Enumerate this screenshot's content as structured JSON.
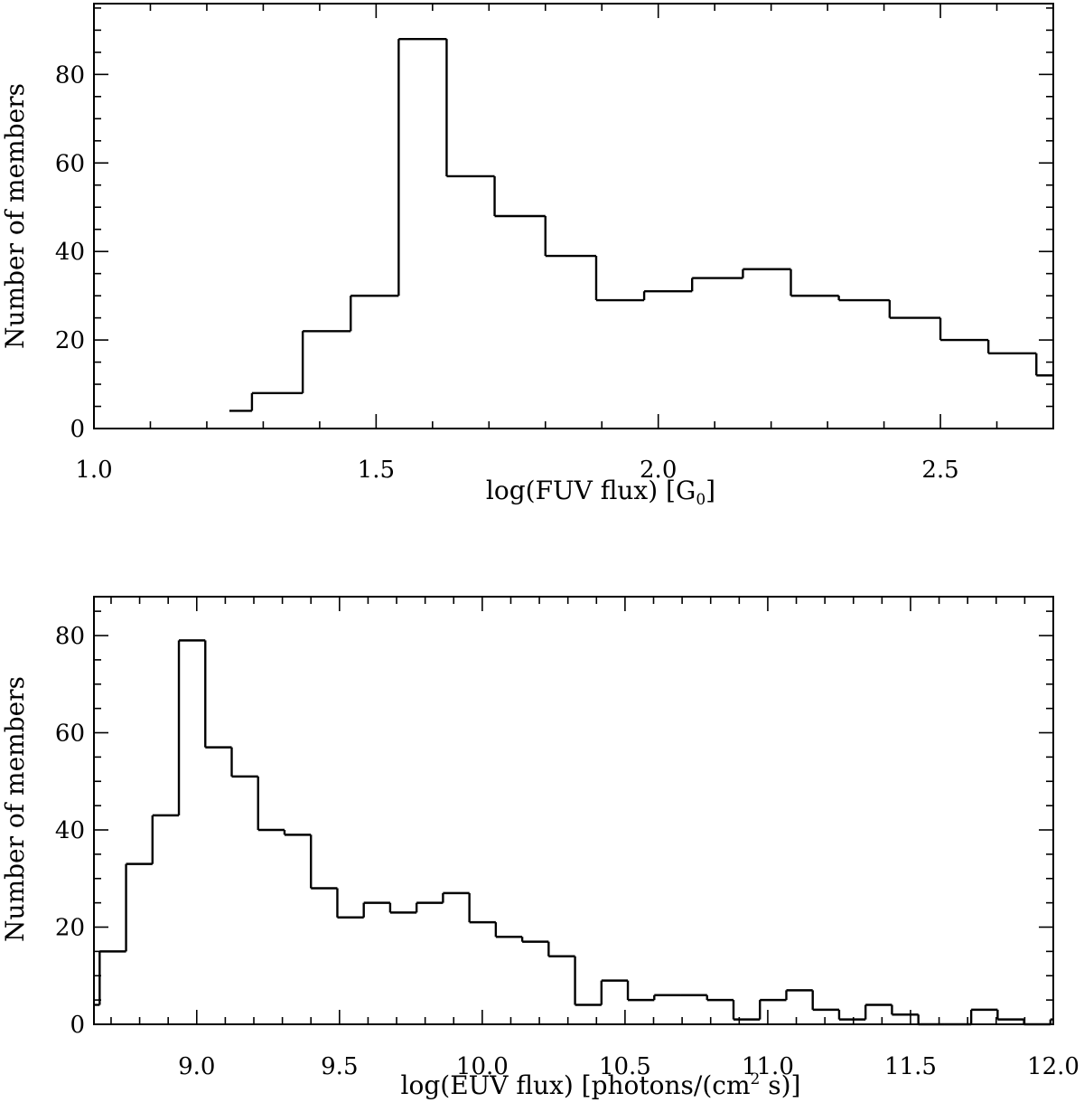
{
  "chart_data": [
    {
      "type": "histogram",
      "xlabel_pre": "log(FUV flux) [G",
      "xlabel_sub": "0",
      "xlabel_post": "]",
      "ylabel": "Number of members",
      "xlim": [
        1.0,
        2.7
      ],
      "ylim": [
        0,
        96
      ],
      "x_ticks": [
        1.0,
        1.5,
        2.0,
        2.5
      ],
      "x_tick_labels": [
        "1.0",
        "1.5",
        "2.0",
        "2.5"
      ],
      "x_minor_step": 0.1,
      "y_ticks": [
        0,
        20,
        40,
        60,
        80
      ],
      "y_tick_labels": [
        "0",
        "20",
        "40",
        "60",
        "80"
      ],
      "y_minor_step": 5,
      "bin_edges": [
        1.24,
        1.28,
        1.37,
        1.455,
        1.54,
        1.625,
        1.71,
        1.8,
        1.89,
        1.975,
        2.06,
        2.15,
        2.235,
        2.32,
        2.41,
        2.5,
        2.585,
        2.67,
        2.7
      ],
      "counts": [
        4,
        8,
        22,
        30,
        88,
        57,
        48,
        39,
        29,
        31,
        34,
        36,
        30,
        29,
        25,
        20,
        17,
        12
      ]
    },
    {
      "type": "histogram",
      "xlabel_pre": "log(EUV flux) [photons/(cm",
      "xlabel_sup": "2",
      "xlabel_post": " s)]",
      "ylabel": "Number of members",
      "xlim": [
        8.64,
        12.0
      ],
      "ylim": [
        0,
        88
      ],
      "x_ticks": [
        9.0,
        9.5,
        10.0,
        10.5,
        11.0,
        11.5,
        12.0
      ],
      "x_tick_labels": [
        "9.0",
        "9.5",
        "10.0",
        "10.5",
        "11.0",
        "11.5",
        "12.0"
      ],
      "x_minor_step": 0.1,
      "y_ticks": [
        0,
        20,
        40,
        60,
        80
      ],
      "y_tick_labels": [
        "0",
        "20",
        "40",
        "60",
        "80"
      ],
      "y_minor_step": 5,
      "bin_start": 8.64,
      "bin_first_width": 0.02,
      "bin_width": 0.0925,
      "counts": [
        4,
        15,
        33,
        43,
        79,
        57,
        51,
        40,
        39,
        28,
        22,
        25,
        23,
        25,
        27,
        21,
        18,
        17,
        14,
        4,
        9,
        5,
        6,
        6,
        5,
        1,
        5,
        7,
        3,
        1,
        4,
        2,
        0,
        0,
        3,
        1,
        0,
        1
      ]
    }
  ]
}
